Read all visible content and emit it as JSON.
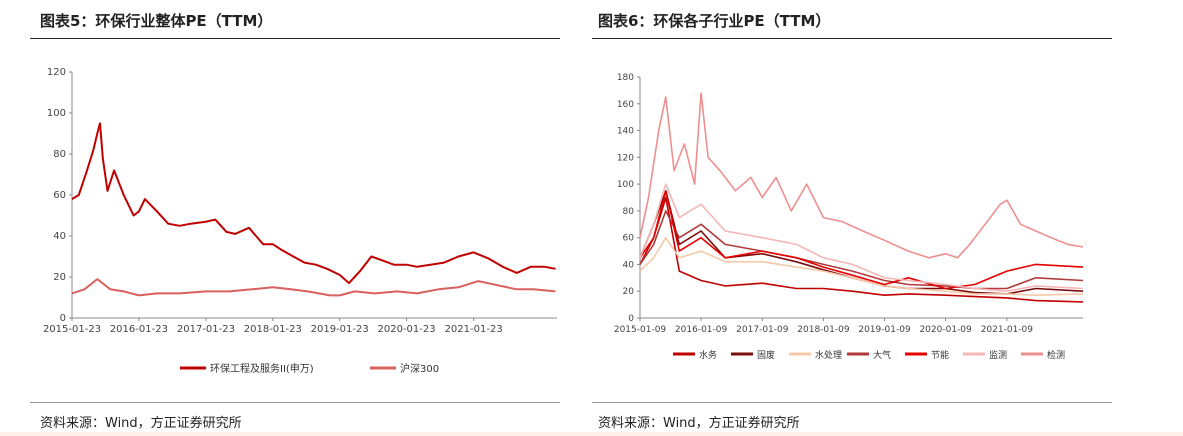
{
  "left_panel": {
    "title": "图表5：环保行业整体PE（TTM）",
    "source": "资料来源：Wind，方正证券研究所"
  },
  "right_panel": {
    "title": "图表6：环保各子行业PE（TTM）",
    "source": "资料来源：Wind，方正证券研究所"
  },
  "chart_data": [
    {
      "type": "line",
      "x_axis": "date",
      "ylim": [
        0,
        120
      ],
      "xlim": [
        "2015-01-23",
        "2022-04-23"
      ],
      "yticks": [
        0,
        20,
        40,
        60,
        80,
        100,
        120
      ],
      "xticks": [
        "2015-01-23",
        "2016-01-23",
        "2017-01-23",
        "2018-01-23",
        "2019-01-23",
        "2020-01-23",
        "2021-01-23"
      ],
      "grid": false,
      "legend_position": "bottom",
      "series": [
        {
          "name": "环保工程及服务II(申万)",
          "color": "#c00000",
          "x": [
            "2015-01-23",
            "2015-03-01",
            "2015-04-15",
            "2015-05-20",
            "2015-06-10",
            "2015-06-25",
            "2015-07-10",
            "2015-08-05",
            "2015-09-10",
            "2015-11-01",
            "2015-12-25",
            "2016-01-23",
            "2016-02-25",
            "2016-05-01",
            "2016-07-01",
            "2016-09-01",
            "2016-11-01",
            "2017-01-23",
            "2017-03-15",
            "2017-05-15",
            "2017-07-01",
            "2017-09-15",
            "2017-12-01",
            "2018-01-23",
            "2018-03-15",
            "2018-05-15",
            "2018-07-15",
            "2018-09-15",
            "2018-11-15",
            "2019-01-23",
            "2019-03-15",
            "2019-05-15",
            "2019-07-15",
            "2019-09-15",
            "2019-11-15",
            "2020-01-23",
            "2020-03-20",
            "2020-06-01",
            "2020-08-15",
            "2020-11-01",
            "2021-01-23",
            "2021-04-15",
            "2021-07-01",
            "2021-09-15",
            "2021-12-01",
            "2022-02-15",
            "2022-04-15"
          ],
          "values": [
            58,
            60,
            72,
            82,
            90,
            95,
            78,
            62,
            72,
            60,
            50,
            52,
            58,
            52,
            46,
            45,
            46,
            47,
            48,
            42,
            41,
            44,
            36,
            36,
            33,
            30,
            27,
            26,
            24,
            21,
            17,
            23,
            30,
            28,
            26,
            26,
            25,
            26,
            27,
            30,
            32,
            29,
            25,
            22,
            25,
            25,
            24
          ]
        },
        {
          "name": "沪深300",
          "color": "#d9605e",
          "x": [
            "2015-01-23",
            "2015-04-01",
            "2015-06-10",
            "2015-08-20",
            "2015-11-01",
            "2016-01-23",
            "2016-05-01",
            "2016-09-01",
            "2017-01-23",
            "2017-06-01",
            "2017-10-01",
            "2018-01-23",
            "2018-05-01",
            "2018-08-01",
            "2018-12-01",
            "2019-01-23",
            "2019-04-15",
            "2019-08-01",
            "2019-12-01",
            "2020-03-20",
            "2020-07-15",
            "2020-11-01",
            "2021-02-18",
            "2021-06-01",
            "2021-09-15",
            "2021-12-15",
            "2022-04-15"
          ],
          "values": [
            12,
            14,
            19,
            14,
            13,
            11,
            12,
            12,
            13,
            13,
            14,
            15,
            14,
            13,
            11,
            11,
            13,
            12,
            13,
            12,
            14,
            15,
            18,
            16,
            14,
            14,
            13
          ]
        }
      ]
    },
    {
      "type": "line",
      "x_axis": "date",
      "ylim": [
        0,
        180
      ],
      "xlim": [
        "2015-01-09",
        "2022-04-09"
      ],
      "yticks": [
        0,
        20,
        40,
        60,
        80,
        100,
        120,
        140,
        160,
        180
      ],
      "xticks": [
        "2015-01-09",
        "2016-01-09",
        "2017-01-09",
        "2018-01-09",
        "2019-01-09",
        "2020-01-09",
        "2021-01-09"
      ],
      "grid": false,
      "legend_position": "bottom",
      "series": [
        {
          "name": "水务",
          "color": "#c00000",
          "x": [
            "2015-01-09",
            "2015-04-01",
            "2015-06-12",
            "2015-09-01",
            "2016-01-09",
            "2016-06-01",
            "2017-01-09",
            "2017-08-01",
            "2018-01-09",
            "2018-07-01",
            "2019-01-09",
            "2019-06-01",
            "2020-01-09",
            "2020-07-01",
            "2021-01-09",
            "2021-07-01",
            "2022-04-09"
          ],
          "values": [
            40,
            60,
            90,
            35,
            28,
            24,
            26,
            22,
            22,
            20,
            17,
            18,
            17,
            16,
            15,
            13,
            12
          ]
        },
        {
          "name": "固废",
          "color": "#7b0c0c",
          "x": [
            "2015-01-09",
            "2015-04-01",
            "2015-06-12",
            "2015-09-01",
            "2016-01-09",
            "2016-06-01",
            "2017-01-09",
            "2017-08-01",
            "2018-01-09",
            "2018-07-01",
            "2019-01-09",
            "2019-06-01",
            "2020-01-09",
            "2020-07-01",
            "2021-01-09",
            "2021-07-01",
            "2022-04-09"
          ],
          "values": [
            45,
            70,
            95,
            55,
            65,
            45,
            48,
            42,
            36,
            30,
            24,
            22,
            22,
            19,
            18,
            22,
            20
          ]
        },
        {
          "name": "水处理",
          "color": "#f6c9a8",
          "x": [
            "2015-01-09",
            "2015-04-01",
            "2015-06-12",
            "2015-09-01",
            "2016-01-09",
            "2016-06-01",
            "2017-01-09",
            "2017-08-01",
            "2018-01-09",
            "2018-07-01",
            "2019-01-09",
            "2019-06-01",
            "2020-01-09",
            "2020-07-01",
            "2021-01-09",
            "2021-07-01",
            "2022-04-09"
          ],
          "values": [
            35,
            45,
            60,
            45,
            50,
            42,
            42,
            38,
            35,
            30,
            24,
            22,
            20,
            18,
            18,
            17,
            18
          ]
        },
        {
          "name": "大气",
          "color": "#b03a3a",
          "x": [
            "2015-01-09",
            "2015-04-01",
            "2015-06-12",
            "2015-09-01",
            "2016-01-09",
            "2016-06-01",
            "2017-01-09",
            "2017-08-01",
            "2018-01-09",
            "2018-07-01",
            "2019-01-09",
            "2019-06-01",
            "2020-01-09",
            "2020-07-01",
            "2021-01-09",
            "2021-07-01",
            "2022-04-09"
          ],
          "values": [
            40,
            55,
            80,
            60,
            70,
            55,
            50,
            45,
            40,
            35,
            28,
            25,
            24,
            22,
            22,
            30,
            28
          ]
        },
        {
          "name": "节能",
          "color": "#e60000",
          "x": [
            "2015-01-09",
            "2015-04-01",
            "2015-06-12",
            "2015-09-01",
            "2016-01-09",
            "2016-06-01",
            "2017-01-09",
            "2017-08-01",
            "2018-01-09",
            "2018-07-01",
            "2019-01-09",
            "2019-06-01",
            "2020-01-09",
            "2020-07-01",
            "2021-01-09",
            "2021-07-01",
            "2022-04-09"
          ],
          "values": [
            45,
            60,
            95,
            50,
            60,
            45,
            50,
            45,
            38,
            32,
            25,
            30,
            22,
            25,
            35,
            40,
            38
          ]
        },
        {
          "name": "监测",
          "color": "#f4b6b6",
          "x": [
            "2015-01-09",
            "2015-04-01",
            "2015-06-12",
            "2015-09-01",
            "2016-01-09",
            "2016-06-01",
            "2017-01-09",
            "2017-08-01",
            "2018-01-09",
            "2018-07-01",
            "2019-01-09",
            "2019-06-01",
            "2020-01-09",
            "2020-07-01",
            "2021-01-09",
            "2021-07-01",
            "2022-04-09"
          ],
          "values": [
            45,
            70,
            100,
            75,
            85,
            65,
            60,
            55,
            45,
            40,
            30,
            28,
            25,
            22,
            20,
            24,
            22
          ]
        },
        {
          "name": "检测",
          "color": "#ee8f8f",
          "x": [
            "2015-01-09",
            "2015-03-01",
            "2015-05-01",
            "2015-06-12",
            "2015-08-01",
            "2015-10-01",
            "2015-12-01",
            "2016-01-09",
            "2016-02-20",
            "2016-05-01",
            "2016-08-01",
            "2016-11-01",
            "2017-01-09",
            "2017-04-01",
            "2017-07-01",
            "2017-10-01",
            "2018-01-09",
            "2018-05-01",
            "2018-09-01",
            "2019-01-09",
            "2019-06-01",
            "2019-10-01",
            "2020-01-09",
            "2020-03-20",
            "2020-06-01",
            "2020-09-01",
            "2020-12-01",
            "2021-01-09",
            "2021-04-01",
            "2021-07-01",
            "2021-10-01",
            "2022-01-09",
            "2022-04-09"
          ],
          "values": [
            60,
            90,
            140,
            165,
            110,
            130,
            100,
            168,
            120,
            110,
            95,
            105,
            90,
            105,
            80,
            100,
            75,
            72,
            65,
            58,
            50,
            45,
            48,
            45,
            55,
            70,
            85,
            88,
            70,
            65,
            60,
            55,
            53
          ]
        }
      ]
    }
  ]
}
